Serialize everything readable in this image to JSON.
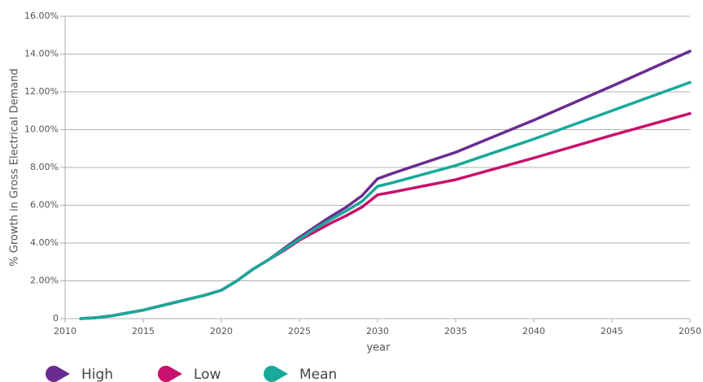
{
  "chart_data": {
    "type": "line",
    "x_label": "year",
    "y_label": "% Growth in Gross Electrical Demand",
    "x": [
      2011,
      2012,
      2013,
      2014,
      2015,
      2016,
      2017,
      2018,
      2019,
      2020,
      2021,
      2022,
      2023,
      2024,
      2025,
      2026,
      2027,
      2028,
      2029,
      2030,
      2031,
      2035,
      2040,
      2045,
      2050
    ],
    "series": [
      {
        "name": "High",
        "color": "#6a2c91",
        "values": [
          0,
          0.05,
          0.15,
          0.3,
          0.45,
          0.65,
          0.85,
          1.05,
          1.25,
          1.5,
          2.0,
          2.6,
          3.1,
          3.7,
          4.3,
          4.85,
          5.4,
          5.9,
          6.5,
          7.4,
          7.7,
          8.8,
          10.5,
          12.3,
          14.15
        ]
      },
      {
        "name": "Low",
        "color": "#c8106e",
        "values": [
          0,
          0.05,
          0.15,
          0.3,
          0.45,
          0.65,
          0.85,
          1.05,
          1.25,
          1.5,
          2.0,
          2.6,
          3.1,
          3.6,
          4.15,
          4.6,
          5.05,
          5.45,
          5.9,
          6.55,
          6.7,
          7.35,
          8.5,
          9.7,
          10.85
        ]
      },
      {
        "name": "Mean",
        "color": "#17a99a",
        "values": [
          0,
          0.05,
          0.15,
          0.3,
          0.45,
          0.65,
          0.85,
          1.05,
          1.25,
          1.5,
          2.0,
          2.6,
          3.1,
          3.65,
          4.2,
          4.75,
          5.25,
          5.7,
          6.2,
          7.0,
          7.2,
          8.1,
          9.5,
          11.0,
          12.5
        ]
      }
    ],
    "xlim": [
      2010,
      2050
    ],
    "xticks": [
      2010,
      2015,
      2020,
      2025,
      2030,
      2035,
      2040,
      2045,
      2050
    ],
    "ylim": [
      0,
      16
    ],
    "yticks": [
      0,
      {
        "value": 2,
        "label": "2.00%"
      },
      {
        "value": 4,
        "label": "4.00%"
      },
      {
        "value": 6,
        "label": "6.00%"
      },
      {
        "value": 8,
        "label": "8.00%"
      },
      {
        "value": 10,
        "label": "10.00%"
      },
      {
        "value": 12,
        "label": "12.00%"
      },
      {
        "value": 14,
        "label": "14.00%"
      },
      {
        "value": 16,
        "label": "16.00%"
      }
    ],
    "grid": true,
    "legend": "bottom"
  }
}
